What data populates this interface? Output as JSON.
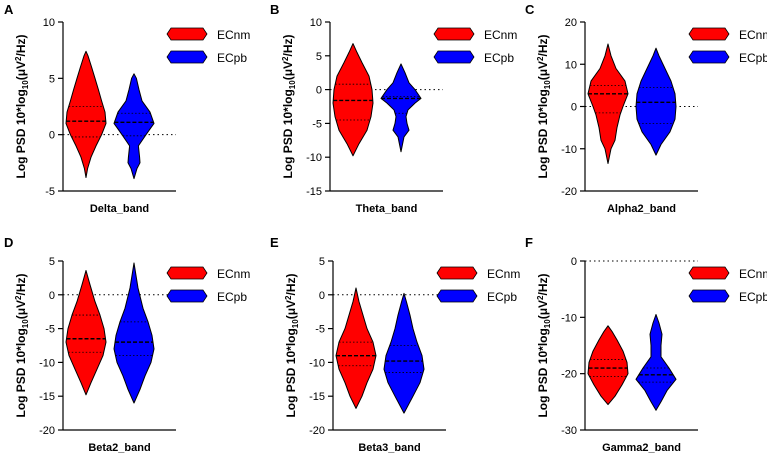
{
  "colors": {
    "ECnm": "#ff0000",
    "ECpb": "#0000ff"
  },
  "ylabel": {
    "main": "Log PSD 10*log",
    "sub": "10",
    "mid": "(μV",
    "sup": "2",
    "end": "/Hz)"
  },
  "chart_data": [
    {
      "panel": "A",
      "type": "violin",
      "xlabel": "Delta_band",
      "ylim": [
        -5,
        10
      ],
      "yticks": [
        -5,
        0,
        5,
        10
      ],
      "refline": 0,
      "series": [
        {
          "name": "ECnm",
          "extent": [
            -3.8,
            7.4
          ],
          "median": 1.2,
          "q1": -0.2,
          "q3": 2.5,
          "profile": [
            [
              -3.8,
              0
            ],
            [
              -3,
              0.08
            ],
            [
              -2,
              0.25
            ],
            [
              -1,
              0.5
            ],
            [
              0,
              0.78
            ],
            [
              1,
              1.0
            ],
            [
              2,
              0.95
            ],
            [
              3,
              0.78
            ],
            [
              4,
              0.62
            ],
            [
              5,
              0.45
            ],
            [
              6,
              0.28
            ],
            [
              7,
              0.1
            ],
            [
              7.4,
              0
            ]
          ]
        },
        {
          "name": "ECpb",
          "extent": [
            -3.9,
            5.4
          ],
          "median": 1.1,
          "q1": -0.1,
          "q3": 1.9,
          "profile": [
            [
              -3.9,
              0
            ],
            [
              -3,
              0.15
            ],
            [
              -2.5,
              0.3
            ],
            [
              -2,
              0.28
            ],
            [
              -1,
              0.22
            ],
            [
              0,
              0.6
            ],
            [
              1,
              1.0
            ],
            [
              2,
              0.8
            ],
            [
              3,
              0.4
            ],
            [
              4,
              0.25
            ],
            [
              5,
              0.12
            ],
            [
              5.4,
              0
            ]
          ]
        }
      ]
    },
    {
      "panel": "B",
      "type": "violin",
      "xlabel": "Theta_band",
      "ylim": [
        -15,
        10
      ],
      "yticks": [
        -15,
        -10,
        -5,
        0,
        5,
        10
      ],
      "refline": 0,
      "series": [
        {
          "name": "ECnm",
          "extent": [
            -9.8,
            6.8
          ],
          "median": -1.6,
          "q1": -4.5,
          "q3": 0.8,
          "profile": [
            [
              -9.8,
              0
            ],
            [
              -8,
              0.3
            ],
            [
              -6,
              0.7
            ],
            [
              -4,
              0.9
            ],
            [
              -2,
              1.0
            ],
            [
              0,
              0.95
            ],
            [
              2,
              0.8
            ],
            [
              4,
              0.45
            ],
            [
              5.5,
              0.2
            ],
            [
              6.8,
              0
            ]
          ]
        },
        {
          "name": "ECpb",
          "extent": [
            -9.2,
            3.8
          ],
          "median": -1.3,
          "q1": -3.5,
          "q3": -1.0,
          "profile": [
            [
              -9.2,
              0
            ],
            [
              -7,
              0.15
            ],
            [
              -6,
              0.4
            ],
            [
              -5,
              0.3
            ],
            [
              -4,
              0.25
            ],
            [
              -3,
              0.35
            ],
            [
              -2,
              0.7
            ],
            [
              -1.3,
              1.0
            ],
            [
              0,
              0.7
            ],
            [
              1,
              0.4
            ],
            [
              2.5,
              0.2
            ],
            [
              3.8,
              0
            ]
          ]
        }
      ]
    },
    {
      "panel": "C",
      "type": "violin",
      "xlabel": "Alpha2_band",
      "ylim": [
        -20,
        20
      ],
      "yticks": [
        -20,
        -10,
        0,
        10,
        20
      ],
      "refline": 0,
      "series": [
        {
          "name": "ECnm",
          "extent": [
            -13.5,
            14.8
          ],
          "median": 3.0,
          "q1": -1.5,
          "q3": 5.0,
          "profile": [
            [
              -13.5,
              0
            ],
            [
              -10,
              0.15
            ],
            [
              -8,
              0.35
            ],
            [
              -5,
              0.45
            ],
            [
              -2,
              0.6
            ],
            [
              0,
              0.75
            ],
            [
              3,
              1.0
            ],
            [
              6,
              0.85
            ],
            [
              9,
              0.4
            ],
            [
              12,
              0.15
            ],
            [
              14.8,
              0
            ]
          ]
        },
        {
          "name": "ECpb",
          "extent": [
            -11.5,
            13.8
          ],
          "median": 1.0,
          "q1": -4.0,
          "q3": 4.5,
          "profile": [
            [
              -11.5,
              0
            ],
            [
              -9,
              0.25
            ],
            [
              -6,
              0.7
            ],
            [
              -3,
              0.95
            ],
            [
              0,
              1.0
            ],
            [
              3,
              0.95
            ],
            [
              6,
              0.75
            ],
            [
              9,
              0.45
            ],
            [
              12,
              0.15
            ],
            [
              13.8,
              0
            ]
          ]
        }
      ]
    },
    {
      "panel": "D",
      "type": "violin",
      "xlabel": "Beta2_band",
      "ylim": [
        -20,
        5
      ],
      "yticks": [
        -20,
        -15,
        -10,
        -5,
        0,
        5
      ],
      "refline": 0,
      "series": [
        {
          "name": "ECnm",
          "extent": [
            -14.8,
            3.6
          ],
          "median": -6.5,
          "q1": -8.5,
          "q3": -3.0,
          "profile": [
            [
              -14.8,
              0
            ],
            [
              -13,
              0.25
            ],
            [
              -11,
              0.55
            ],
            [
              -9,
              0.85
            ],
            [
              -7,
              1.0
            ],
            [
              -5,
              0.9
            ],
            [
              -3,
              0.7
            ],
            [
              -1,
              0.45
            ],
            [
              1.5,
              0.2
            ],
            [
              3.6,
              0
            ]
          ]
        },
        {
          "name": "ECpb",
          "extent": [
            -16.0,
            4.7
          ],
          "median": -7.0,
          "q1": -9.0,
          "q3": -4.0,
          "profile": [
            [
              -16,
              0
            ],
            [
              -14,
              0.3
            ],
            [
              -12,
              0.55
            ],
            [
              -10,
              0.85
            ],
            [
              -8,
              1.0
            ],
            [
              -6,
              0.9
            ],
            [
              -4,
              0.7
            ],
            [
              -2,
              0.45
            ],
            [
              1,
              0.2
            ],
            [
              4.7,
              0
            ]
          ]
        }
      ]
    },
    {
      "panel": "E",
      "type": "violin",
      "xlabel": "Beta3_band",
      "ylim": [
        -20,
        5
      ],
      "yticks": [
        -20,
        -15,
        -10,
        -5,
        0,
        5
      ],
      "refline": 0,
      "series": [
        {
          "name": "ECnm",
          "extent": [
            -16.8,
            1.0
          ],
          "median": -9.0,
          "q1": -10.5,
          "q3": -7.0,
          "profile": [
            [
              -16.8,
              0
            ],
            [
              -15,
              0.3
            ],
            [
              -13,
              0.55
            ],
            [
              -11,
              0.85
            ],
            [
              -9,
              1.0
            ],
            [
              -7,
              0.85
            ],
            [
              -5,
              0.55
            ],
            [
              -3,
              0.35
            ],
            [
              -1,
              0.15
            ],
            [
              1,
              0
            ]
          ]
        },
        {
          "name": "ECpb",
          "extent": [
            -17.5,
            0.2
          ],
          "median": -9.8,
          "q1": -11.5,
          "q3": -7.5,
          "profile": [
            [
              -17.5,
              0
            ],
            [
              -15,
              0.45
            ],
            [
              -13,
              0.8
            ],
            [
              -11,
              1.0
            ],
            [
              -9,
              0.9
            ],
            [
              -7,
              0.65
            ],
            [
              -5,
              0.45
            ],
            [
              -3,
              0.3
            ],
            [
              -1,
              0.12
            ],
            [
              0.2,
              0
            ]
          ]
        }
      ]
    },
    {
      "panel": "F",
      "type": "violin",
      "xlabel": "Gamma2_band",
      "ylim": [
        -30,
        0
      ],
      "yticks": [
        -30,
        -20,
        -10,
        0
      ],
      "refline": 0,
      "series": [
        {
          "name": "ECnm",
          "extent": [
            -25.5,
            -11.5
          ],
          "median": -19.0,
          "q1": -20.5,
          "q3": -17.5,
          "profile": [
            [
              -25.5,
              0
            ],
            [
              -24,
              0.35
            ],
            [
              -22,
              0.7
            ],
            [
              -20,
              1.0
            ],
            [
              -18,
              0.95
            ],
            [
              -16,
              0.75
            ],
            [
              -14,
              0.45
            ],
            [
              -12.5,
              0.2
            ],
            [
              -11.5,
              0
            ]
          ]
        },
        {
          "name": "ECpb",
          "extent": [
            -26.5,
            -9.5
          ],
          "median": -20.2,
          "q1": -21.5,
          "q3": -19.0,
          "profile": [
            [
              -26.5,
              0
            ],
            [
              -25,
              0.25
            ],
            [
              -23,
              0.55
            ],
            [
              -21,
              1.0
            ],
            [
              -19,
              0.65
            ],
            [
              -17,
              0.25
            ],
            [
              -15,
              0.25
            ],
            [
              -13,
              0.3
            ],
            [
              -11,
              0.15
            ],
            [
              -9.5,
              0
            ]
          ]
        }
      ]
    }
  ]
}
